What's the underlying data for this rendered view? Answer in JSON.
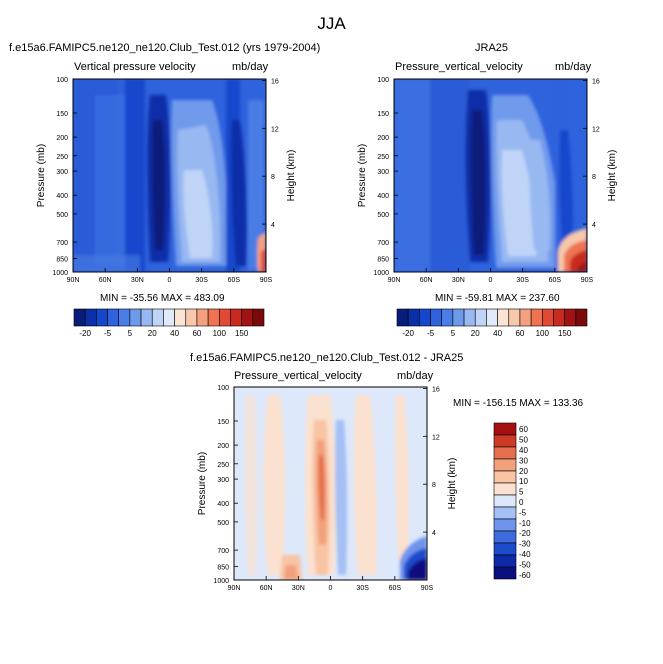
{
  "page": {
    "title": "JJA"
  },
  "colors": {
    "blue_red_17": [
      "#081d7a",
      "#0a2fa8",
      "#1547cc",
      "#2f62dd",
      "#4a7de5",
      "#6f9aec",
      "#98b8f2",
      "#c0d4f7",
      "#e0eafa",
      "#fbe4d3",
      "#f8c8ac",
      "#f4a07e",
      "#ee7352",
      "#e04a34",
      "#c82a1f",
      "#a11312",
      "#7a0a0a"
    ],
    "diff_13": [
      "#0a0f7f",
      "#0f2aa8",
      "#1e4acc",
      "#3e6ae0",
      "#6f94ec",
      "#a4c0f5",
      "#dde8fa",
      "#fbe1cf",
      "#f8c4a4",
      "#f3a07c",
      "#e56f4e",
      "#cd3b27",
      "#a50f0f"
    ]
  },
  "panels": [
    {
      "id": "model",
      "case_title": "f.e15a6.FAMIPC5.ne120_ne120.Club_Test.012 (yrs 1979-2004)",
      "left_label": "Vertical pressure velocity",
      "right_label": "mb/day",
      "minmax_text": "MIN = -35.56  MAX = 483.09",
      "colorbar_labels": [
        "-20",
        "-5",
        "5",
        "20",
        "40",
        "60",
        "100",
        "150"
      ]
    },
    {
      "id": "obs",
      "case_title": "JRA25",
      "left_label": "Pressure_vertical_velocity",
      "right_label": "mb/day",
      "minmax_text": "MIN = -59.81  MAX = 237.60",
      "colorbar_labels": [
        "-20",
        "-5",
        "5",
        "20",
        "40",
        "60",
        "100",
        "150"
      ]
    },
    {
      "id": "diff",
      "case_title": "f.e15a6.FAMIPC5.ne120_ne120.Club_Test.012 - JRA25",
      "left_label": "Pressure_vertical_velocity",
      "right_label": "mb/day",
      "minmax_text": "MIN = -156.15  MAX = 133.36",
      "colorbar_labels": [
        "60",
        "50",
        "40",
        "30",
        "20",
        "10",
        "5",
        "0",
        "-5",
        "-10",
        "-20",
        "-30",
        "-40",
        "-50",
        "-60"
      ]
    }
  ],
  "chart_data": [
    {
      "type": "heatmap",
      "title": "f.e15a6.FAMIPC5.ne120_ne120.Club_Test.012 (yrs 1979-2004)",
      "variable": "Vertical pressure velocity",
      "units": "mb/day",
      "xlabel": "",
      "ylabel": "Pressure (mb)",
      "ylabel_right": "Height (km)",
      "x_ticks": [
        "90N",
        "60N",
        "30N",
        "0",
        "30S",
        "60S",
        "90S"
      ],
      "y_ticks": [
        100,
        150,
        200,
        250,
        300,
        400,
        500,
        700,
        850,
        1000
      ],
      "y_right_ticks": [
        4,
        8,
        12,
        16
      ],
      "min": -35.56,
      "max": 483.09,
      "contour_levels": [
        -20,
        -15,
        -10,
        -5,
        0,
        5,
        10,
        15,
        20,
        30,
        40,
        50,
        60,
        80,
        100,
        125,
        150
      ]
    },
    {
      "type": "heatmap",
      "title": "JRA25",
      "variable": "Pressure_vertical_velocity",
      "units": "mb/day",
      "xlabel": "",
      "ylabel": "Pressure (mb)",
      "ylabel_right": "Height (km)",
      "x_ticks": [
        "90N",
        "60N",
        "30N",
        "0",
        "30S",
        "60S",
        "90S"
      ],
      "y_ticks": [
        100,
        150,
        200,
        250,
        300,
        400,
        500,
        700,
        850,
        1000
      ],
      "y_right_ticks": [
        4,
        8,
        12,
        16
      ],
      "min": -59.81,
      "max": 237.6,
      "contour_levels": [
        -20,
        -15,
        -10,
        -5,
        0,
        5,
        10,
        15,
        20,
        30,
        40,
        50,
        60,
        80,
        100,
        125,
        150
      ]
    },
    {
      "type": "heatmap",
      "title": "f.e15a6.FAMIPC5.ne120_ne120.Club_Test.012 - JRA25",
      "variable": "Pressure_vertical_velocity",
      "units": "mb/day",
      "xlabel": "",
      "ylabel": "Pressure (mb)",
      "ylabel_right": "Height (km)",
      "x_ticks": [
        "90N",
        "60N",
        "30N",
        "0",
        "30S",
        "60S",
        "90S"
      ],
      "y_ticks": [
        100,
        150,
        200,
        250,
        300,
        400,
        500,
        700,
        850,
        1000
      ],
      "y_right_ticks": [
        4,
        8,
        12,
        16
      ],
      "min": -156.15,
      "max": 133.36,
      "contour_levels": [
        -60,
        -50,
        -40,
        -30,
        -20,
        -10,
        -5,
        0,
        5,
        10,
        20,
        30,
        40,
        50,
        60
      ]
    }
  ]
}
